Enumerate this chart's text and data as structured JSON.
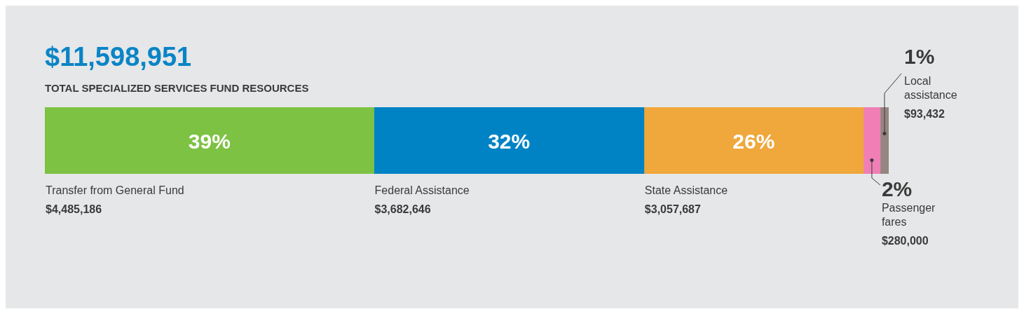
{
  "chart_data": {
    "type": "bar",
    "orientation": "horizontal",
    "stacked": true,
    "title": "$11,598,951",
    "subtitle": "TOTAL SPECIALIZED SERVICES FUND RESOURCES",
    "categories": [
      null
    ],
    "series": [
      {
        "name": "Transfer from General Fund",
        "color": "#7dc243",
        "values": [
          39
        ],
        "value_labels": [
          "39%"
        ]
      },
      {
        "name": "Federal Assistance",
        "color": "#0083c5",
        "values": [
          32
        ],
        "value_labels": [
          "32%"
        ]
      },
      {
        "name": "State Assistance",
        "color": "#f0a73b",
        "values": [
          26
        ],
        "value_labels": [
          "26%"
        ]
      },
      {
        "name": "Passenger fares",
        "color": "#ef7fb5",
        "values": [
          2
        ],
        "value_labels": [
          "2%"
        ]
      },
      {
        "name": "Local assistance",
        "color": "#968580",
        "values": [
          1
        ],
        "value_labels": [
          "1%"
        ]
      }
    ],
    "annotations": [
      "$4,485,186",
      "$3,682,646",
      "$3,057,687",
      "$280,000",
      "$93,432"
    ]
  }
}
